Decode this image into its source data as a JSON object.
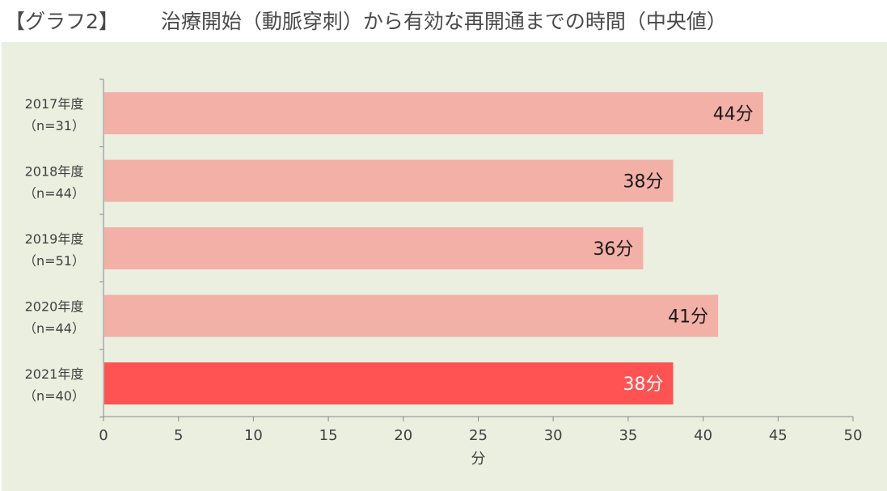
{
  "heading": {
    "tag": "【グラフ2】",
    "title": "治療開始（動脈穿刺）から有効な再開通までの時間（中央値）"
  },
  "chart_data": {
    "type": "bar",
    "orientation": "horizontal",
    "categories": [
      [
        "2017年度",
        "（n=31）"
      ],
      [
        "2018年度",
        "（n=44）"
      ],
      [
        "2019年度",
        "（n=51）"
      ],
      [
        "2020年度",
        "（n=44）"
      ],
      [
        "2021年度",
        "（n=40）"
      ]
    ],
    "values": [
      44,
      38,
      36,
      41,
      38
    ],
    "value_labels": [
      "44分",
      "38分",
      "36分",
      "41分",
      "38分"
    ],
    "highlight_index": 4,
    "colors": {
      "bar": "#f2b0a7",
      "highlight": "#ff5252",
      "label": "#1a1a1a",
      "highlight_label": "#ffffff",
      "background": "#eaefe0",
      "axis": "#888888"
    },
    "xlabel": "分",
    "xlim": [
      0,
      50
    ],
    "xticks": [
      0,
      5,
      10,
      15,
      20,
      25,
      30,
      35,
      40,
      45,
      50
    ],
    "grid": false,
    "legend": "none"
  }
}
